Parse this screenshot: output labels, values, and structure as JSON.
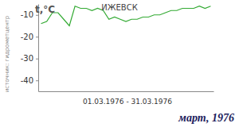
{
  "chart_data": {
    "type": "line",
    "title": "ИЖЕВСК",
    "y_label": "t,°C",
    "x_label": "01.03.1976 - 31.03.1976",
    "annotations": [
      "источник: гидрометцентр",
      "март, 1976"
    ],
    "x": [
      1,
      2,
      3,
      4,
      5,
      6,
      7,
      8,
      9,
      10,
      11,
      12,
      13,
      14,
      15,
      16,
      17,
      18,
      19,
      20,
      21,
      22,
      23,
      24,
      25,
      26,
      27,
      28,
      29,
      30,
      31
    ],
    "values": [
      -14,
      -13,
      -9,
      -9,
      -12,
      -15,
      -6,
      -7,
      -7,
      -8,
      -7,
      -8,
      -12,
      -11,
      -12,
      -13,
      -12,
      -12,
      -11,
      -11,
      -10,
      -10,
      -9,
      -8,
      -8,
      -7,
      -7,
      -7,
      -6,
      -7,
      -6
    ],
    "color": "#33aa33",
    "xlim": [
      0.5,
      31.5
    ],
    "ylim": [
      -45,
      -5
    ],
    "yticks": [
      -10,
      -20,
      -30,
      -40
    ],
    "grid": false,
    "tick_labels": "y"
  }
}
